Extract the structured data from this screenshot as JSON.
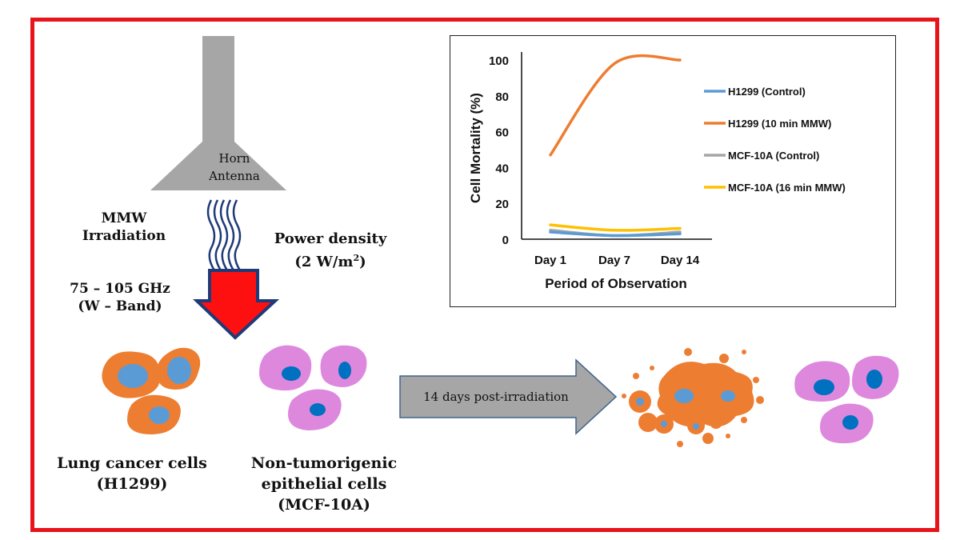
{
  "antenna": {
    "line1": "Horn",
    "line2": "Antenna"
  },
  "labels": {
    "mmw_line1": "MMW",
    "mmw_line2": "Irradiation",
    "freq_line1": "75 – 105 GHz",
    "freq_line2": "(W – Band)",
    "power_line1": "Power density",
    "power_line2": "(2 W/m",
    "power_sup": "2",
    "power_close": ")",
    "lung_line1": "Lung cancer cells",
    "lung_line2": "(H1299)",
    "epi_line1": "Non-tumorigenic",
    "epi_line2": "epithelial cells",
    "epi_line3": "(MCF-10A)",
    "arrow_text": "14 days post-irradiation"
  },
  "colors": {
    "frame": "#e8141b",
    "cancer": "#ed7d31",
    "nucleus_cancer": "#5b9bd5",
    "normal": "#dd88dd",
    "nucleus_normal": "#0070c0"
  },
  "chart_data": {
    "type": "line",
    "title": "",
    "xlabel": "Period of Observation",
    "ylabel": "Cell Mortality (%)",
    "categories": [
      "Day 1",
      "Day 7",
      "Day 14"
    ],
    "ylim": [
      0,
      100
    ],
    "yticks": [
      "0",
      "20",
      "40",
      "60",
      "80",
      "100"
    ],
    "legend_position": "right",
    "grid": false,
    "series": [
      {
        "name": "H1299 (Control)",
        "color": "#5b9bd5",
        "values": [
          4,
          2,
          3
        ]
      },
      {
        "name": "H1299 (10 min MMW)",
        "color": "#ed7d31",
        "values": [
          47,
          98,
          100
        ]
      },
      {
        "name": "MCF-10A (Control)",
        "color": "#a5a5a5",
        "values": [
          5,
          2,
          4
        ]
      },
      {
        "name": "MCF-10A (16 min MMW)",
        "color": "#ffc000",
        "values": [
          8,
          5,
          6
        ]
      }
    ]
  }
}
